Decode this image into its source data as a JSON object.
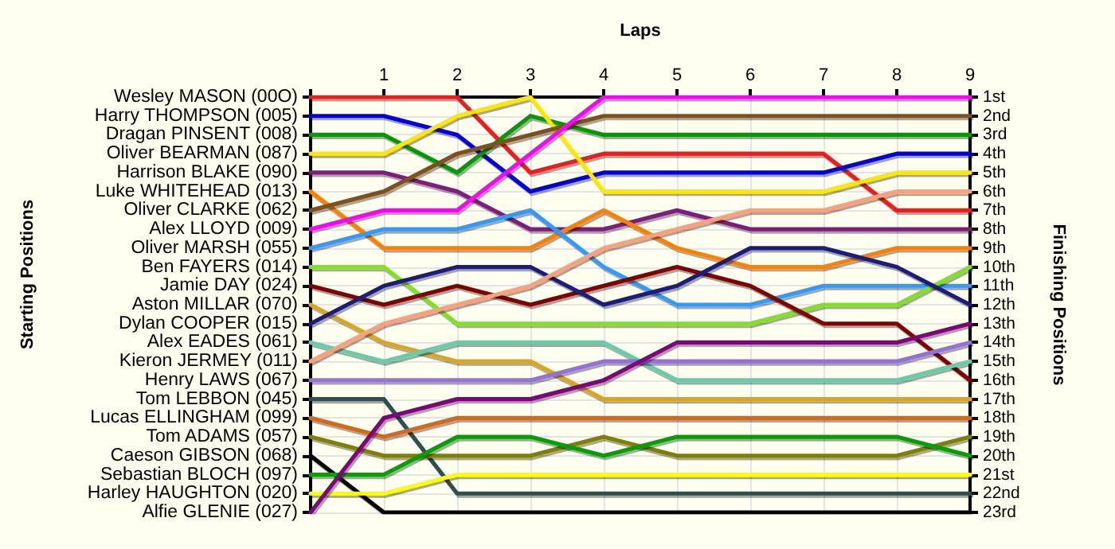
{
  "chart_data": {
    "type": "line",
    "xlabel": "Laps",
    "annotations": [
      "Starting Positions"
    ],
    "y2label": "Finishing Positions",
    "x": [
      0,
      1,
      2,
      3,
      4,
      5,
      6,
      7,
      8,
      9
    ],
    "xlim": [
      0,
      9
    ],
    "xticks": [
      {
        "value": 0,
        "label": null
      },
      1,
      2,
      3,
      4,
      5,
      6,
      7,
      8,
      9
    ],
    "y_categories": [
      "Wesley MASON (00O)",
      "Harry THOMPSON (005)",
      "Dragan PINSENT (008)",
      "Oliver BEARMAN (087)",
      "Harrison BLAKE (090)",
      "Luke WHITEHEAD (013)",
      "Oliver CLARKE (062)",
      "Alex LLOYD (009)",
      "Oliver MARSH (055)",
      "Ben FAYERS (014)",
      "Jamie DAY (024)",
      "Aston MILLAR (070)",
      "Dylan COOPER (015)",
      "Alex EADES (061)",
      "Kieron JERMEY (011)",
      "Henry LAWS (067)",
      "Tom LEBBON (045)",
      "Lucas ELLINGHAM (099)",
      "Tom ADAMS (057)",
      "Caeson GIBSON (068)",
      "Sebastian BLOCH (097)",
      "Harley HAUGHTON (020)",
      "Alfie GLENIE (027)"
    ],
    "y2lim": [
      23,
      1
    ],
    "y2ticks": [
      {
        "value": 1,
        "label": "1st"
      },
      {
        "value": 2,
        "label": "2nd"
      },
      {
        "value": 3,
        "label": "3rd"
      },
      {
        "value": 4,
        "label": "4th"
      },
      {
        "value": 5,
        "label": "5th"
      },
      {
        "value": 6,
        "label": "6th"
      },
      {
        "value": 7,
        "label": "7th"
      },
      {
        "value": 8,
        "label": "8th"
      },
      {
        "value": 9,
        "label": "9th"
      },
      {
        "value": 10,
        "label": "10th"
      },
      {
        "value": 11,
        "label": "11th"
      },
      {
        "value": 12,
        "label": "12th"
      },
      {
        "value": 13,
        "label": "13th"
      },
      {
        "value": 14,
        "label": "14th"
      },
      {
        "value": 15,
        "label": "15th"
      },
      {
        "value": 16,
        "label": "16th"
      },
      {
        "value": 17,
        "label": "17th"
      },
      {
        "value": 18,
        "label": "18th"
      },
      {
        "value": 19,
        "label": "19th"
      },
      {
        "value": 20,
        "label": "20th"
      },
      {
        "value": 21,
        "label": "21st"
      },
      {
        "value": 22,
        "label": "22nd"
      },
      {
        "value": 23,
        "label": "23rd"
      }
    ],
    "grid": true,
    "marker": "none",
    "line_style": "solid",
    "series": [
      {
        "color": "#ee1c1c",
        "axis": "y2",
        "values": [
          1,
          1,
          1,
          5,
          4,
          4,
          4,
          4,
          7,
          7
        ]
      },
      {
        "color": "#0000dd",
        "axis": "y2",
        "values": [
          2,
          2,
          3,
          6,
          5,
          5,
          5,
          5,
          4,
          4
        ]
      },
      {
        "color": "#009900",
        "axis": "y2",
        "values": [
          3,
          3,
          5,
          2,
          3,
          3,
          3,
          3,
          3,
          3
        ]
      },
      {
        "color": "#ffe800",
        "axis": "y2",
        "values": [
          4,
          4,
          2,
          1,
          6,
          6,
          6,
          6,
          5,
          5
        ]
      },
      {
        "color": "#7f1f7f",
        "axis": "y2",
        "values": [
          5,
          5,
          6,
          8,
          8,
          7,
          8,
          8,
          8,
          8
        ]
      },
      {
        "color": "#ff8000",
        "axis": "y2",
        "values": [
          6,
          9,
          9,
          9,
          7,
          9,
          10,
          10,
          9,
          9
        ]
      },
      {
        "color": "#7f4f1f",
        "axis": "y2",
        "values": [
          7,
          6,
          4,
          3,
          2,
          2,
          2,
          2,
          2,
          2
        ]
      },
      {
        "color": "#ff00ff",
        "axis": "y2",
        "values": [
          8,
          7,
          7,
          4,
          1,
          1,
          1,
          1,
          1,
          1
        ]
      },
      {
        "color": "#3399ff",
        "axis": "y2",
        "values": [
          9,
          8,
          8,
          7,
          10,
          12,
          12,
          11,
          11,
          11
        ]
      },
      {
        "color": "#80e020",
        "axis": "y2",
        "values": [
          10,
          10,
          13,
          13,
          13,
          13,
          13,
          12,
          12,
          10
        ]
      },
      {
        "color": "#800000",
        "axis": "y2",
        "values": [
          11,
          12,
          11,
          12,
          11,
          10,
          11,
          13,
          13,
          16
        ]
      },
      {
        "color": "#daa520",
        "axis": "y2",
        "values": [
          12,
          14,
          15,
          15,
          17,
          17,
          17,
          17,
          17,
          17
        ]
      },
      {
        "color": "#1f1f7f",
        "axis": "y2",
        "values": [
          13,
          11,
          10,
          10,
          12,
          11,
          9,
          9,
          10,
          12
        ]
      },
      {
        "color": "#66ccaa",
        "axis": "y2",
        "values": [
          14,
          15,
          14,
          14,
          14,
          16,
          16,
          16,
          16,
          15
        ]
      },
      {
        "color": "#ffa07a",
        "axis": "y2",
        "values": [
          15,
          13,
          12,
          11,
          9,
          8,
          7,
          7,
          6,
          6
        ]
      },
      {
        "color": "#9370db",
        "axis": "y2",
        "values": [
          16,
          16,
          16,
          16,
          15,
          15,
          15,
          15,
          15,
          14
        ]
      },
      {
        "color": "#2f4f4f",
        "axis": "y2",
        "values": [
          17,
          17,
          22,
          22,
          22,
          22,
          22,
          22,
          22,
          22
        ]
      },
      {
        "color": "#d2691e",
        "axis": "y2",
        "values": [
          18,
          19,
          18,
          18,
          18,
          18,
          18,
          18,
          18,
          18
        ]
      },
      {
        "color": "#808000",
        "axis": "y2",
        "values": [
          19,
          20,
          20,
          20,
          19,
          20,
          20,
          20,
          20,
          19
        ]
      },
      {
        "color": "#000000",
        "axis": "y2",
        "values": [
          20,
          23,
          23,
          23,
          23,
          23,
          23,
          23,
          23,
          23
        ]
      },
      {
        "color": "#00a000",
        "axis": "y2",
        "values": [
          21,
          21,
          19,
          19,
          20,
          19,
          19,
          19,
          19,
          20
        ]
      },
      {
        "color": "#ffff00",
        "axis": "y2",
        "values": [
          22,
          22,
          21,
          21,
          21,
          21,
          21,
          21,
          21,
          21
        ]
      },
      {
        "color": "#800080",
        "axis": "y2",
        "values": [
          23,
          18,
          17,
          17,
          16,
          14,
          14,
          14,
          14,
          13
        ]
      }
    ]
  }
}
